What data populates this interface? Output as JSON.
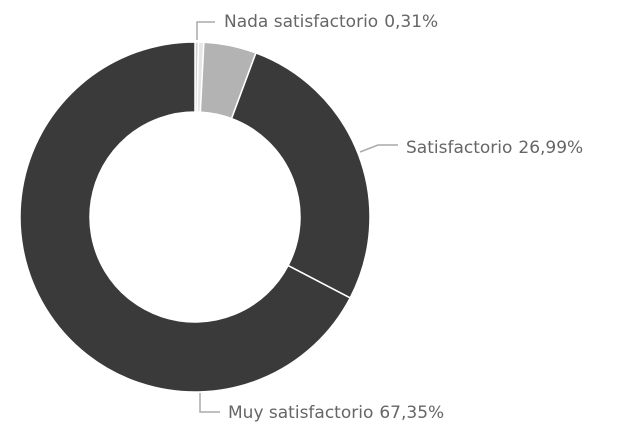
{
  "chart_data": {
    "type": "donut",
    "categories": [
      "Nada satisfactorio",
      null,
      null,
      "Satisfactorio",
      "Muy satisfactorio"
    ],
    "values": [
      0.31,
      0.5,
      4.85,
      26.99,
      67.35
    ],
    "value_labels": [
      "0,31%",
      null,
      null,
      "26,99%",
      "67,35%"
    ],
    "colors": [
      "#cfcfcf",
      "#e6e6e6",
      "#b3b3b3",
      "#3a3a3a",
      "#3a3a3a"
    ]
  }
}
